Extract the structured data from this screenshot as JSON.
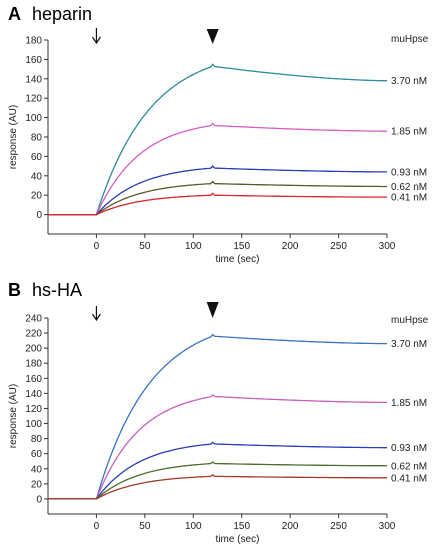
{
  "chart_data": [
    {
      "type": "line",
      "panel_label": "A",
      "title": "heparin",
      "xlabel": "time (sec)",
      "ylabel": "response (AU)",
      "legend_title": "muHpse",
      "xlim": [
        -50,
        300
      ],
      "ylim": [
        -20,
        180
      ],
      "x_ticks": [
        0,
        50,
        100,
        150,
        200,
        250,
        300
      ],
      "y_ticks": [
        0,
        20,
        40,
        60,
        80,
        100,
        120,
        140,
        160,
        180
      ],
      "grid": false,
      "markers": [
        {
          "kind": "arrow-down",
          "x": 0
        },
        {
          "kind": "triangle-down",
          "x": 120
        }
      ],
      "series": [
        {
          "label": "3.70 nM",
          "color": "#2e8b9e",
          "x": [
            -50,
            0,
            120,
            300
          ],
          "y": [
            0,
            0,
            153,
            138
          ],
          "tau": 55
        },
        {
          "label": "1.85 nM",
          "color": "#d35fc6",
          "x": [
            -50,
            0,
            120,
            300
          ],
          "y": [
            0,
            0,
            92,
            86
          ],
          "tau": 45
        },
        {
          "label": "0.93 nM",
          "color": "#2a3db8",
          "x": [
            -50,
            0,
            120,
            300
          ],
          "y": [
            0,
            0,
            48,
            44
          ],
          "tau": 45
        },
        {
          "label": "0.62 nM",
          "color": "#5a5a28",
          "x": [
            -50,
            0,
            120,
            300
          ],
          "y": [
            0,
            0,
            32,
            29
          ],
          "tau": 45
        },
        {
          "label": "0.41 nM",
          "color": "#d8262a",
          "x": [
            -50,
            0,
            120,
            300
          ],
          "y": [
            0,
            0,
            20,
            18
          ],
          "tau": 45
        }
      ]
    },
    {
      "type": "line",
      "panel_label": "B",
      "title": "hs-HA",
      "xlabel": "time (sec)",
      "ylabel": "response (AU)",
      "legend_title": "muHpse",
      "xlim": [
        -50,
        300
      ],
      "ylim": [
        -20,
        240
      ],
      "x_ticks": [
        0,
        50,
        100,
        150,
        200,
        250,
        300
      ],
      "y_ticks": [
        0,
        20,
        40,
        60,
        80,
        100,
        120,
        140,
        160,
        180,
        200,
        220,
        240
      ],
      "grid": false,
      "markers": [
        {
          "kind": "arrow-down",
          "x": 0
        },
        {
          "kind": "triangle-down",
          "x": 120
        }
      ],
      "series": [
        {
          "label": "3.70 nM",
          "color": "#3a72c4",
          "x": [
            -50,
            0,
            120,
            300
          ],
          "y": [
            0,
            0,
            216,
            206
          ],
          "tau": 55
        },
        {
          "label": "1.85 nM",
          "color": "#c75fc0",
          "x": [
            -50,
            0,
            120,
            300
          ],
          "y": [
            0,
            0,
            136,
            128
          ],
          "tau": 45
        },
        {
          "label": "0.93 nM",
          "color": "#2a3db8",
          "x": [
            -50,
            0,
            120,
            300
          ],
          "y": [
            0,
            0,
            73,
            68
          ],
          "tau": 45
        },
        {
          "label": "0.62 nM",
          "color": "#4f6b2a",
          "x": [
            -50,
            0,
            120,
            300
          ],
          "y": [
            0,
            0,
            47,
            44
          ],
          "tau": 45
        },
        {
          "label": "0.41 nM",
          "color": "#a23a2a",
          "x": [
            -50,
            0,
            120,
            300
          ],
          "y": [
            0,
            0,
            30,
            28
          ],
          "tau": 45
        }
      ]
    }
  ]
}
